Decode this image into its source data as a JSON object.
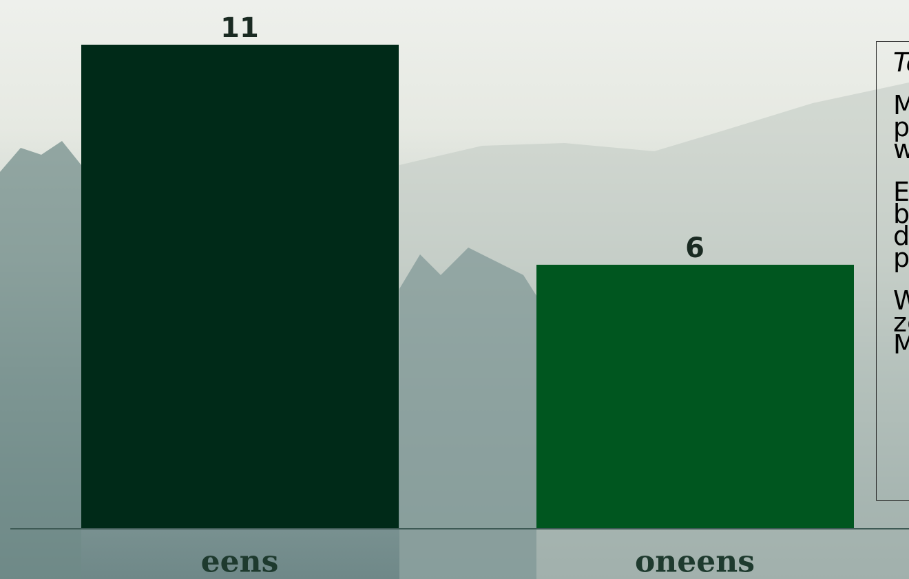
{
  "chart_data": {
    "type": "bar",
    "categories": [
      "eens",
      "oneens"
    ],
    "values": [
      11,
      6
    ],
    "colors": [
      "#002a18",
      "#00561f"
    ],
    "ylim": [
      0,
      11
    ]
  },
  "sidebar": {
    "title": "Tc",
    "paragraphs": [
      [
        "M",
        "p",
        "w"
      ],
      [
        "E",
        "b",
        "d",
        "p"
      ],
      [
        "W",
        "zc",
        "M"
      ]
    ]
  }
}
